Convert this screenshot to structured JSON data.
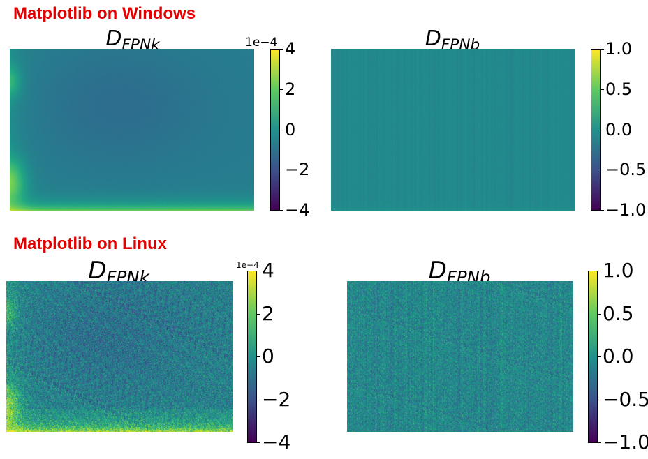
{
  "sections": {
    "windows": {
      "title": "Matplotlib on Windows"
    },
    "linux": {
      "title": "Matplotlib on Linux"
    }
  },
  "chart_data": [
    {
      "type": "heatmap",
      "group": "windows",
      "title_main": "D",
      "title_sub": "FPNk",
      "colormap": "viridis",
      "colorbar": {
        "ticks": [
          4,
          2,
          0,
          -2,
          -4
        ],
        "labels": [
          "4",
          "2",
          "0",
          "−2",
          "−4"
        ],
        "exponent": "1e−4",
        "range": [
          -4,
          4
        ]
      },
      "pattern": "smooth-k"
    },
    {
      "type": "heatmap",
      "group": "windows",
      "title_main": "D",
      "title_sub": "FPNb",
      "colormap": "viridis",
      "colorbar": {
        "ticks": [
          1.0,
          0.5,
          0.0,
          -0.5,
          -1.0
        ],
        "labels": [
          "1.0",
          "0.5",
          "0.0",
          "−0.5",
          "−1.0"
        ],
        "exponent": "",
        "range": [
          -1,
          1
        ]
      },
      "pattern": "smooth-b"
    },
    {
      "type": "heatmap",
      "group": "linux",
      "title_main": "D",
      "title_sub": "FPNk",
      "colormap": "viridis",
      "colorbar": {
        "ticks": [
          4,
          2,
          0,
          -2,
          -4
        ],
        "labels": [
          "4",
          "2",
          "0",
          "−2",
          "−4"
        ],
        "exponent": "1e−4",
        "range": [
          -4,
          4
        ]
      },
      "pattern": "noisy-k"
    },
    {
      "type": "heatmap",
      "group": "linux",
      "title_main": "D",
      "title_sub": "FPNb",
      "colormap": "viridis",
      "colorbar": {
        "ticks": [
          1.0,
          0.5,
          0.0,
          -0.5,
          -1.0
        ],
        "labels": [
          "1.0",
          "0.5",
          "0.0",
          "−0.5",
          "−1.0"
        ],
        "exponent": "",
        "range": [
          -1,
          1
        ]
      },
      "pattern": "noisy-b"
    }
  ]
}
